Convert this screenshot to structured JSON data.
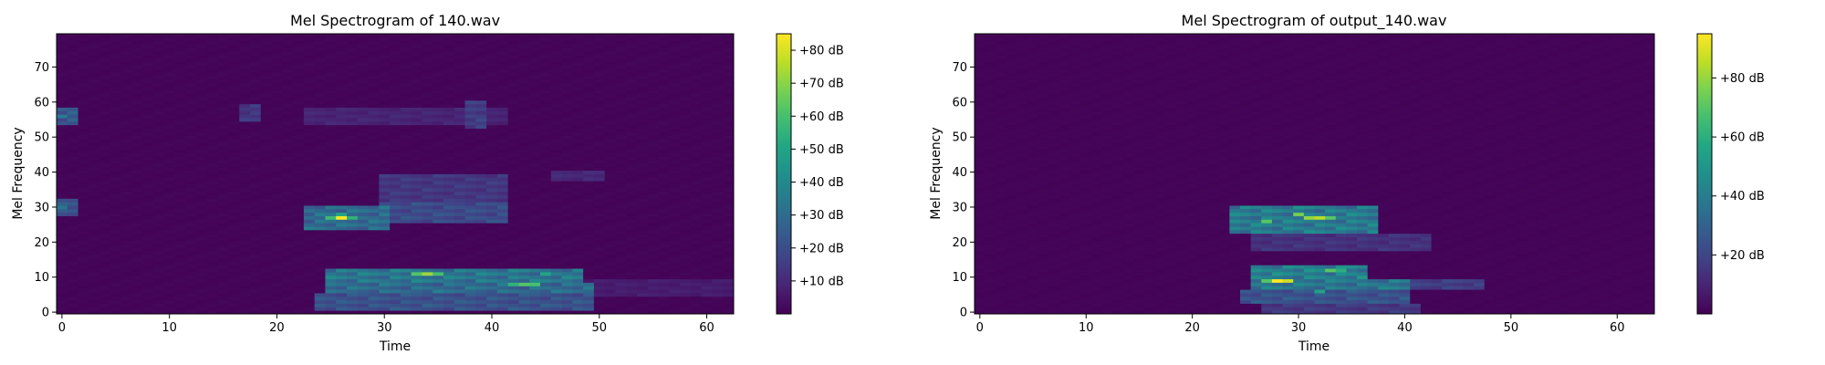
{
  "figure": {
    "background": "#ffffff"
  },
  "chart_data": [
    {
      "type": "heatmap",
      "title": "Mel Spectrogram of 140.wav",
      "xlabel": "Time",
      "ylabel": "Mel Frequency",
      "xlim": [
        -0.5,
        62.5
      ],
      "ylim": [
        -0.5,
        79.5
      ],
      "x_ticks": [
        0,
        10,
        20,
        30,
        40,
        50,
        60
      ],
      "y_ticks": [
        0,
        10,
        20,
        30,
        40,
        50,
        60,
        70
      ],
      "colormap": "viridis",
      "colorbar": {
        "min": 0,
        "max": 85,
        "ticks": [
          10,
          20,
          30,
          40,
          50,
          60,
          70,
          80
        ],
        "tick_labels": [
          "+10 dB",
          "+20 dB",
          "+30 dB",
          "+40 dB",
          "+50 dB",
          "+60 dB",
          "+70 dB",
          "+80 dB"
        ]
      },
      "time_frames": 63,
      "mel_bins": 80,
      "hotspots": [
        {
          "t": 26,
          "mel": 27,
          "db": 85
        },
        {
          "t": 25,
          "mel": 27,
          "db": 58
        },
        {
          "t": 27,
          "mel": 27,
          "db": 55
        },
        {
          "t": 26,
          "mel": 28,
          "db": 50
        },
        {
          "t": 34,
          "mel": 11,
          "db": 72
        },
        {
          "t": 33,
          "mel": 11,
          "db": 62
        },
        {
          "t": 35,
          "mel": 11,
          "db": 60
        },
        {
          "t": 43,
          "mel": 8,
          "db": 62
        },
        {
          "t": 44,
          "mel": 8,
          "db": 60
        },
        {
          "t": 42,
          "mel": 8,
          "db": 55
        },
        {
          "t": 45,
          "mel": 11,
          "db": 50
        },
        {
          "t": 0,
          "mel": 56,
          "db": 35
        },
        {
          "t": 0,
          "mel": 30,
          "db": 33
        }
      ],
      "bands": [
        {
          "t0": 24,
          "t1": 49,
          "mel0": 1,
          "mel1": 5,
          "db": 22
        },
        {
          "t0": 25,
          "t1": 49,
          "mel0": 6,
          "mel1": 8,
          "db": 30
        },
        {
          "t0": 25,
          "t1": 48,
          "mel0": 9,
          "mel1": 12,
          "db": 34
        },
        {
          "t0": 23,
          "t1": 30,
          "mel0": 24,
          "mel1": 30,
          "db": 30
        },
        {
          "t0": 30,
          "t1": 41,
          "mel0": 26,
          "mel1": 31,
          "db": 20
        },
        {
          "t0": 30,
          "t1": 41,
          "mel0": 32,
          "mel1": 39,
          "db": 14
        },
        {
          "t0": 23,
          "t1": 41,
          "mel0": 54,
          "mel1": 58,
          "db": 9
        },
        {
          "t0": 17,
          "t1": 18,
          "mel0": 55,
          "mel1": 59,
          "db": 14
        },
        {
          "t0": 38,
          "t1": 39,
          "mel0": 53,
          "mel1": 60,
          "db": 16
        },
        {
          "t0": 46,
          "t1": 50,
          "mel0": 38,
          "mel1": 40,
          "db": 10
        },
        {
          "t0": 0,
          "t1": 1,
          "mel0": 54,
          "mel1": 58,
          "db": 24
        },
        {
          "t0": 0,
          "t1": 1,
          "mel0": 28,
          "mel1": 32,
          "db": 22
        },
        {
          "t0": 48,
          "t1": 62,
          "mel0": 5,
          "mel1": 9,
          "db": 7
        }
      ]
    },
    {
      "type": "heatmap",
      "title": "Mel Spectrogram of output_140.wav",
      "xlabel": "Time",
      "ylabel": "Mel Frequency",
      "xlim": [
        -0.5,
        63.5
      ],
      "ylim": [
        -0.5,
        79.5
      ],
      "x_ticks": [
        0,
        10,
        20,
        30,
        40,
        50,
        60
      ],
      "y_ticks": [
        0,
        10,
        20,
        30,
        40,
        50,
        60,
        70
      ],
      "colormap": "viridis",
      "colorbar": {
        "min": 0,
        "max": 95,
        "ticks": [
          20,
          40,
          60,
          80
        ],
        "tick_labels": [
          "+20 dB",
          "+40 dB",
          "+60 dB",
          "+80 dB"
        ]
      },
      "time_frames": 64,
      "mel_bins": 80,
      "hotspots": [
        {
          "t": 28,
          "mel": 9,
          "db": 95
        },
        {
          "t": 29,
          "mel": 9,
          "db": 88
        },
        {
          "t": 27,
          "mel": 9,
          "db": 70
        },
        {
          "t": 32,
          "mel": 27,
          "db": 85
        },
        {
          "t": 31,
          "mel": 27,
          "db": 80
        },
        {
          "t": 30,
          "mel": 28,
          "db": 75
        },
        {
          "t": 33,
          "mel": 27,
          "db": 70
        },
        {
          "t": 27,
          "mel": 26,
          "db": 70
        },
        {
          "t": 33,
          "mel": 12,
          "db": 70
        },
        {
          "t": 34,
          "mel": 12,
          "db": 60
        },
        {
          "t": 32,
          "mel": 6,
          "db": 55
        }
      ],
      "bands": [
        {
          "t0": 24,
          "t1": 37,
          "mel0": 23,
          "mel1": 30,
          "db": 40
        },
        {
          "t0": 26,
          "t1": 42,
          "mel0": 18,
          "mel1": 22,
          "db": 14
        },
        {
          "t0": 26,
          "t1": 36,
          "mel0": 10,
          "mel1": 13,
          "db": 42
        },
        {
          "t0": 26,
          "t1": 40,
          "mel0": 7,
          "mel1": 9,
          "db": 38
        },
        {
          "t0": 40,
          "t1": 47,
          "mel0": 7,
          "mel1": 9,
          "db": 18
        },
        {
          "t0": 25,
          "t1": 40,
          "mel0": 3,
          "mel1": 6,
          "db": 25
        },
        {
          "t0": 27,
          "t1": 41,
          "mel0": 0,
          "mel1": 2,
          "db": 16
        }
      ]
    }
  ]
}
